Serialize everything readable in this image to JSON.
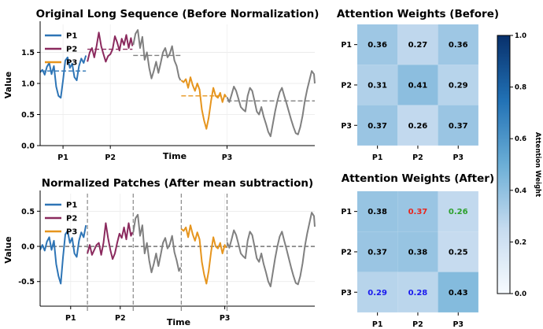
{
  "chart_data": [
    {
      "type": "line",
      "title": "Original Long Sequence (Before Normalization)",
      "xlabel": "Time",
      "ylabel": "Value",
      "ylim": [
        0.0,
        1.95
      ],
      "yticks": [
        "0.0",
        "0.5",
        "1.0",
        "1.5"
      ],
      "xticks": [
        "P1",
        "P2",
        "P3"
      ],
      "grid": true,
      "legend": "top-left",
      "series": [
        {
          "name": "P1",
          "color": "#2e75b6",
          "t": [
            0,
            3,
            6,
            9,
            12,
            15,
            18,
            21,
            24,
            27,
            30,
            33,
            36,
            39,
            42,
            45,
            48,
            51,
            54,
            57,
            60
          ],
          "y": [
            1.18,
            1.22,
            1.14,
            1.27,
            1.33,
            1.15,
            1.28,
            0.95,
            0.8,
            0.77,
            1.05,
            1.37,
            1.42,
            1.25,
            1.32,
            1.1,
            1.05,
            1.28,
            1.4,
            1.33,
            1.45
          ]
        },
        {
          "name": "P2",
          "color": "#8b2a5e",
          "t": [
            62,
            65,
            68,
            71,
            74,
            77,
            80,
            83,
            86,
            89,
            92,
            95,
            98,
            101,
            104,
            107,
            110,
            113,
            116,
            119,
            121
          ],
          "y": [
            1.35,
            1.5,
            1.57,
            1.42,
            1.6,
            1.82,
            1.6,
            1.47,
            1.35,
            1.44,
            1.47,
            1.55,
            1.76,
            1.66,
            1.53,
            1.72,
            1.62,
            1.78,
            1.57,
            1.73,
            1.6
          ]
        },
        {
          "name": "",
          "color": "#808080",
          "t": [
            122,
            125,
            128,
            131,
            134,
            137,
            140,
            143,
            146,
            149,
            152,
            155,
            158,
            161,
            164,
            167,
            170,
            173,
            176,
            179,
            182,
            184
          ],
          "y": [
            1.62,
            1.8,
            1.86,
            1.57,
            1.75,
            1.38,
            1.5,
            1.25,
            1.08,
            1.2,
            1.35,
            1.17,
            1.33,
            1.5,
            1.57,
            1.42,
            1.48,
            1.6,
            1.37,
            1.28,
            1.1,
            1.05
          ]
        },
        {
          "name": "P3",
          "color": "#e6951e",
          "t": [
            185,
            188,
            191,
            194,
            197,
            200,
            203,
            206,
            209,
            212,
            215,
            218,
            221,
            224,
            227,
            230,
            233,
            236,
            239,
            242,
            244
          ],
          "y": [
            1.05,
            1.02,
            1.07,
            0.93,
            1.1,
            0.97,
            0.88,
            1.0,
            0.9,
            0.58,
            0.4,
            0.27,
            0.45,
            0.72,
            0.93,
            0.8,
            0.77,
            0.85,
            0.7,
            0.82,
            0.78
          ]
        },
        {
          "name": "",
          "color": "#808080",
          "t": [
            245,
            248,
            251,
            254,
            257,
            260,
            263,
            266,
            269,
            272,
            275,
            278,
            281,
            284,
            287,
            290,
            293,
            296,
            299,
            302,
            305,
            308,
            311,
            314,
            317,
            320,
            323,
            326,
            329,
            332,
            335,
            338,
            341,
            344,
            347,
            350,
            353,
            356,
            359,
            360
          ],
          "y": [
            0.78,
            0.7,
            0.82,
            0.95,
            0.88,
            0.75,
            0.62,
            0.58,
            0.55,
            0.8,
            0.93,
            0.88,
            0.72,
            0.55,
            0.5,
            0.62,
            0.47,
            0.35,
            0.22,
            0.15,
            0.35,
            0.55,
            0.72,
            0.86,
            0.93,
            0.8,
            0.68,
            0.55,
            0.42,
            0.3,
            0.2,
            0.18,
            0.3,
            0.48,
            0.72,
            0.9,
            1.05,
            1.2,
            1.15,
            1.0
          ]
        }
      ],
      "segment_means": [
        {
          "color": "#2e75b6",
          "t": [
            0,
            60
          ],
          "y": 1.2
        },
        {
          "color": "#8b2a5e",
          "t": [
            62,
            121
          ],
          "y": 1.55
        },
        {
          "color": "#808080",
          "t": [
            122,
            184
          ],
          "y": 1.45
        },
        {
          "color": "#e6951e",
          "t": [
            185,
            244
          ],
          "y": 0.8
        },
        {
          "color": "#808080",
          "t": [
            245,
            360
          ],
          "y": 0.72
        }
      ]
    },
    {
      "type": "line",
      "title": "Normalized Patches (After mean subtraction)",
      "xlabel": "Time",
      "ylabel": "Value",
      "ylim": [
        -0.85,
        0.75
      ],
      "yticks": [
        "-0.5",
        "0.0",
        "0.5"
      ],
      "xticks": [
        "P1",
        "P2",
        "P3"
      ],
      "grid": true,
      "legend": "top-left",
      "patch_boundaries": [
        62,
        122,
        185,
        245
      ],
      "series": [
        {
          "name": "P1",
          "color": "#2e75b6",
          "t": [
            0,
            3,
            6,
            9,
            12,
            15,
            18,
            21,
            24,
            27,
            30,
            33,
            36,
            39,
            42,
            45,
            48,
            51,
            54,
            57,
            60
          ],
          "y": [
            -0.05,
            0.02,
            -0.06,
            0.07,
            0.13,
            -0.05,
            0.08,
            -0.25,
            -0.42,
            -0.53,
            -0.15,
            0.17,
            0.22,
            0.05,
            0.12,
            -0.1,
            -0.15,
            0.08,
            0.2,
            0.13,
            0.3
          ]
        },
        {
          "name": "P2",
          "color": "#8b2a5e",
          "t": [
            62,
            65,
            68,
            71,
            74,
            77,
            80,
            83,
            86,
            89,
            92,
            95,
            98,
            101,
            104,
            107,
            110,
            113,
            116,
            119,
            121
          ],
          "y": [
            -0.1,
            0.02,
            -0.12,
            -0.05,
            0.02,
            0.05,
            -0.12,
            0.05,
            0.33,
            0.12,
            -0.05,
            -0.18,
            -0.1,
            0.05,
            0.18,
            0.12,
            0.27,
            0.1,
            0.33,
            0.15,
            0.2
          ]
        },
        {
          "name": "",
          "color": "#808080",
          "t": [
            122,
            125,
            128,
            131,
            134,
            137,
            140,
            143,
            146,
            149,
            152,
            155,
            158,
            161,
            164,
            167,
            170,
            173,
            176,
            179,
            182,
            184
          ],
          "y": [
            0.2,
            0.4,
            0.45,
            0.15,
            0.3,
            -0.1,
            0.05,
            -0.2,
            -0.37,
            -0.25,
            -0.1,
            -0.28,
            -0.12,
            0.05,
            0.12,
            -0.03,
            0.03,
            0.15,
            -0.08,
            -0.2,
            -0.35,
            -0.3
          ]
        },
        {
          "name": "P3",
          "color": "#e6951e",
          "t": [
            185,
            188,
            191,
            194,
            197,
            200,
            203,
            206,
            209,
            212,
            215,
            218,
            221,
            224,
            227,
            230,
            233,
            236,
            239,
            242,
            244
          ],
          "y": [
            0.25,
            0.22,
            0.27,
            0.13,
            0.3,
            0.17,
            0.08,
            0.2,
            0.1,
            -0.22,
            -0.4,
            -0.53,
            -0.35,
            -0.08,
            0.13,
            0.0,
            -0.03,
            0.05,
            -0.1,
            0.02,
            -0.02
          ]
        },
        {
          "name": "",
          "color": "#808080",
          "t": [
            245,
            248,
            251,
            254,
            257,
            260,
            263,
            266,
            269,
            272,
            275,
            278,
            281,
            284,
            287,
            290,
            293,
            296,
            299,
            302,
            305,
            308,
            311,
            314,
            317,
            320,
            323,
            326,
            329,
            332,
            335,
            338,
            341,
            344,
            347,
            350,
            353,
            356,
            359,
            360
          ],
          "y": [
            0.06,
            -0.02,
            0.1,
            0.23,
            0.16,
            0.03,
            -0.1,
            -0.14,
            -0.17,
            0.08,
            0.21,
            0.16,
            0.0,
            -0.17,
            -0.22,
            -0.1,
            -0.25,
            -0.37,
            -0.5,
            -0.57,
            -0.37,
            -0.17,
            0.0,
            0.14,
            0.21,
            0.08,
            -0.04,
            -0.17,
            -0.3,
            -0.42,
            -0.52,
            -0.54,
            -0.42,
            -0.24,
            0.0,
            0.18,
            0.33,
            0.48,
            0.43,
            0.28
          ]
        }
      ]
    },
    {
      "type": "heatmap",
      "title": "Attention Weights (Before)",
      "rows": [
        "P1",
        "P2",
        "P3"
      ],
      "cols": [
        "P1",
        "P2",
        "P3"
      ],
      "values": [
        [
          0.36,
          0.27,
          0.36
        ],
        [
          0.31,
          0.41,
          0.29
        ],
        [
          0.37,
          0.26,
          0.37
        ]
      ],
      "labels": [
        [
          "0.36",
          "0.27",
          "0.36"
        ],
        [
          "0.31",
          "0.41",
          "0.29"
        ],
        [
          "0.37",
          "0.26",
          "0.37"
        ]
      ],
      "label_colors": [
        [
          "#000000",
          "#000000",
          "#000000"
        ],
        [
          "#000000",
          "#000000",
          "#000000"
        ],
        [
          "#000000",
          "#000000",
          "#000000"
        ]
      ],
      "vmin": 0.0,
      "vmax": 1.0
    },
    {
      "type": "heatmap",
      "title": "Attention Weights (After)",
      "rows": [
        "P1",
        "P2",
        "P3"
      ],
      "cols": [
        "P1",
        "P2",
        "P3"
      ],
      "values": [
        [
          0.38,
          0.37,
          0.26
        ],
        [
          0.37,
          0.38,
          0.25
        ],
        [
          0.29,
          0.28,
          0.43
        ]
      ],
      "labels": [
        [
          "0.38",
          "0.37",
          "0.26"
        ],
        [
          "0.37",
          "0.38",
          "0.25"
        ],
        [
          "0.29",
          "0.28",
          "0.43"
        ]
      ],
      "label_colors": [
        [
          "#000000",
          "#e8261e",
          "#2ca02c"
        ],
        [
          "#000000",
          "#000000",
          "#000000"
        ],
        [
          "#1a1aee",
          "#1a1aee",
          "#000000"
        ]
      ],
      "vmin": 0.0,
      "vmax": 1.0
    },
    {
      "type": "colorbar",
      "label": "Attention Weight",
      "ticks": [
        "0.0",
        "0.2",
        "0.4",
        "0.6",
        "0.8",
        "1.0"
      ],
      "range": [
        0.0,
        1.0
      ]
    }
  ]
}
